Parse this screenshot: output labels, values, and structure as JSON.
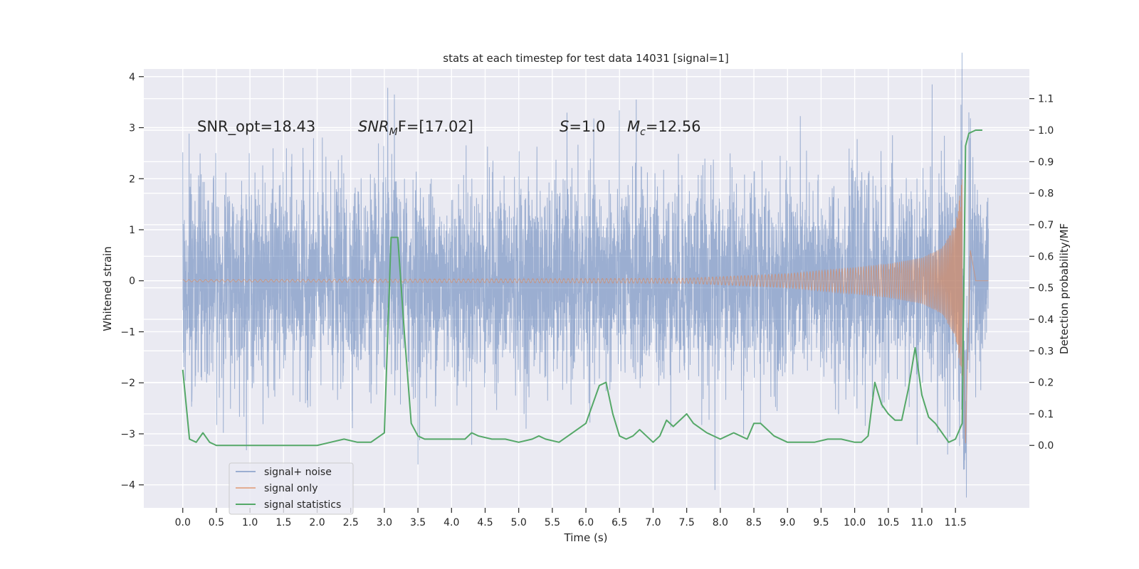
{
  "chart_data": {
    "type": "line",
    "title": "stats at each timestep for test data 14031 [signal=1]",
    "xlabel": "Time (s)",
    "ylabel": "Whitened strain",
    "ylabel_right": "Detection probability/MF",
    "xlim": [
      -0.58,
      12.6
    ],
    "ylim": [
      -4.45,
      4.15
    ],
    "ylim_right": [
      -0.198,
      1.194
    ],
    "xticks": [
      "0.0",
      "0.5",
      "1.0",
      "1.5",
      "2.0",
      "2.5",
      "3.0",
      "3.5",
      "4.0",
      "4.5",
      "5.0",
      "5.5",
      "6.0",
      "6.5",
      "7.0",
      "7.5",
      "8.0",
      "8.5",
      "9.0",
      "9.5",
      "10.0",
      "10.5",
      "11.0",
      "11.5"
    ],
    "yticks": [
      "4",
      "3",
      "2",
      "1",
      "0",
      "−1",
      "−2",
      "−3",
      "−4"
    ],
    "yticks_right": [
      "1.1",
      "1.0",
      "0.9",
      "0.8",
      "0.7",
      "0.6",
      "0.5",
      "0.4",
      "0.3",
      "0.2",
      "0.1",
      "0.0"
    ],
    "grid": true,
    "legend_position": "lower-left",
    "colors": {
      "background": "#eaeaf2",
      "noise": "#4c72b0",
      "signal": "#dd8452",
      "stats": "#55a868",
      "grid": "#ffffff"
    },
    "annotations": {
      "snr_opt": "SNR_opt=18.43",
      "snr_mf_label": "SNR",
      "snr_mf_sub": "M",
      "snr_mf_rest": "F=[17.02]",
      "s_label": "S",
      "s_rest": "=1.0",
      "mc_label": "M",
      "mc_sub": "c",
      "mc_rest": "=12.56"
    },
    "noise_envelope": {
      "x_range": [
        0.0,
        11.99
      ],
      "typical_amplitude": 1.0,
      "peak_amplitude": 3.3,
      "extremes": [
        {
          "x": 3.05,
          "y": 3.78
        },
        {
          "x": 3.15,
          "y": 3.65
        },
        {
          "x": 6.75,
          "y": 3.55
        },
        {
          "x": 7.92,
          "y": -4.1
        },
        {
          "x": 3.5,
          "y": -3.6
        },
        {
          "x": 11.62,
          "y": -3.7
        },
        {
          "x": 11.7,
          "y": 3.3
        }
      ]
    },
    "signal_chirp": {
      "t_merger": 11.6,
      "amplitude_points": [
        [
          0.0,
          0.02
        ],
        [
          7.5,
          0.05
        ],
        [
          9.0,
          0.14
        ],
        [
          10.0,
          0.26
        ],
        [
          10.5,
          0.33
        ],
        [
          11.0,
          0.45
        ],
        [
          11.3,
          0.65
        ],
        [
          11.5,
          1.1
        ],
        [
          11.62,
          2.2
        ]
      ],
      "ringdown_points": [
        [
          11.65,
          -3.2
        ],
        [
          11.72,
          0.6
        ],
        [
          11.8,
          0.02
        ]
      ]
    },
    "series": [
      {
        "name": "signal+ noise",
        "axis": "left"
      },
      {
        "name": "signal only",
        "axis": "left"
      },
      {
        "name": "signal statistics",
        "axis": "right",
        "x": [
          0.0,
          0.1,
          0.2,
          0.3,
          0.4,
          0.5,
          0.6,
          0.7,
          0.8,
          0.9,
          1.0,
          1.2,
          1.4,
          1.6,
          1.8,
          2.0,
          2.2,
          2.4,
          2.6,
          2.8,
          3.0,
          3.1,
          3.2,
          3.3,
          3.4,
          3.5,
          3.6,
          3.8,
          4.0,
          4.2,
          4.3,
          4.4,
          4.6,
          4.8,
          5.0,
          5.2,
          5.3,
          5.4,
          5.6,
          5.8,
          6.0,
          6.2,
          6.3,
          6.4,
          6.5,
          6.6,
          6.7,
          6.8,
          6.9,
          7.0,
          7.1,
          7.2,
          7.3,
          7.4,
          7.5,
          7.6,
          7.8,
          8.0,
          8.2,
          8.3,
          8.4,
          8.5,
          8.6,
          8.8,
          9.0,
          9.2,
          9.4,
          9.6,
          9.8,
          10.0,
          10.1,
          10.2,
          10.3,
          10.4,
          10.5,
          10.6,
          10.7,
          10.8,
          10.9,
          11.0,
          11.1,
          11.2,
          11.3,
          11.4,
          11.5,
          11.6,
          11.65,
          11.7,
          11.8,
          11.9
        ],
        "values": [
          0.24,
          0.02,
          0.01,
          0.04,
          0.01,
          0.0,
          0.0,
          0.0,
          0.0,
          0.0,
          0.0,
          0.0,
          0.0,
          0.0,
          0.0,
          0.0,
          0.01,
          0.02,
          0.01,
          0.01,
          0.04,
          0.66,
          0.66,
          0.35,
          0.07,
          0.03,
          0.02,
          0.02,
          0.02,
          0.02,
          0.04,
          0.03,
          0.02,
          0.02,
          0.01,
          0.02,
          0.03,
          0.02,
          0.01,
          0.04,
          0.07,
          0.19,
          0.2,
          0.1,
          0.03,
          0.02,
          0.03,
          0.05,
          0.03,
          0.01,
          0.03,
          0.08,
          0.06,
          0.08,
          0.1,
          0.07,
          0.04,
          0.02,
          0.04,
          0.03,
          0.02,
          0.07,
          0.07,
          0.03,
          0.01,
          0.01,
          0.01,
          0.02,
          0.02,
          0.01,
          0.01,
          0.03,
          0.2,
          0.13,
          0.1,
          0.08,
          0.08,
          0.18,
          0.31,
          0.16,
          0.09,
          0.07,
          0.04,
          0.01,
          0.02,
          0.07,
          0.95,
          0.99,
          1.0,
          1.0
        ]
      }
    ]
  }
}
